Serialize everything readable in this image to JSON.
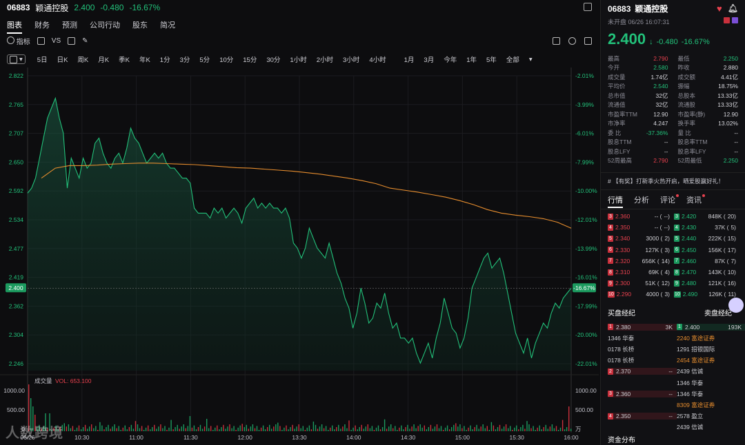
{
  "header": {
    "code": "06883",
    "name": "颖通控股",
    "price": "2.400",
    "change": "-0.480",
    "change_pct": "-16.67%"
  },
  "nav_tabs": [
    "图表",
    "财务",
    "预测",
    "公司行动",
    "股东",
    "简况"
  ],
  "toolbar": {
    "indicator": "指标",
    "vs": "VS"
  },
  "periods": [
    "5日",
    "日K",
    "周K",
    "月K",
    "季K",
    "年K",
    "1分",
    "3分",
    "5分",
    "10分",
    "15分",
    "30分",
    "1小时",
    "2小时",
    "3小时",
    "4小时"
  ],
  "periods2": [
    "1月",
    "3月",
    "今年",
    "1年",
    "5年",
    "全部"
  ],
  "chart_data": {
    "type": "line",
    "price_ticks": [
      "2.822",
      "2.765",
      "2.707",
      "2.650",
      "2.592",
      "2.534",
      "2.477",
      "2.419",
      "2.362",
      "2.304",
      "2.246"
    ],
    "pct_ticks": [
      "-2.01%",
      "-3.99%",
      "-6.01%",
      "-7.99%",
      "-10.00%",
      "-12.01%",
      "-13.99%",
      "-16.01%",
      "-17.99%",
      "-20.00%",
      "-22.01%"
    ],
    "current_price_label": "2.400",
    "current_pct_label": "-16.67%",
    "time_ticks": [
      "06/26",
      "10:30",
      "11:00",
      "11:30",
      "12:00",
      "13:30",
      "14:00",
      "14:30",
      "15:00",
      "15:30",
      "16:00"
    ],
    "ylim": [
      2.246,
      2.822
    ],
    "series": [
      {
        "values": [
          2.59,
          2.6,
          2.62,
          2.66,
          2.7,
          2.74,
          2.76,
          2.78,
          2.74,
          2.71,
          2.6,
          2.66,
          2.64,
          2.62,
          2.66,
          2.64,
          2.65,
          2.69,
          2.7,
          2.67,
          2.65,
          2.64,
          2.66,
          2.67,
          2.65,
          2.68,
          2.72,
          2.7,
          2.69,
          2.67,
          2.65,
          2.66,
          2.67,
          2.66,
          2.67,
          2.65,
          2.64,
          2.64,
          2.63,
          2.62,
          2.62,
          2.61,
          2.56,
          2.55,
          2.55,
          2.55,
          2.54,
          2.56,
          2.55,
          2.56,
          2.54,
          2.55,
          2.56,
          2.55,
          2.53,
          2.56,
          2.57,
          2.58,
          2.56,
          2.57,
          2.56,
          2.57,
          2.56,
          2.56,
          2.55,
          2.56,
          2.54,
          2.49,
          2.48,
          2.46,
          2.48,
          2.52,
          2.5,
          2.48,
          2.47,
          2.46,
          2.49,
          2.46,
          2.43,
          2.41,
          2.38,
          2.36,
          2.32,
          2.35,
          2.4,
          2.37,
          2.33,
          2.34,
          2.37,
          2.36,
          2.39,
          2.35,
          2.32,
          2.33,
          2.3,
          2.3,
          2.29,
          2.3,
          2.27,
          2.25,
          2.27,
          2.29,
          2.26,
          2.3,
          2.33,
          2.38,
          2.35,
          2.32,
          2.31,
          2.28,
          2.3,
          2.34,
          2.4,
          2.42,
          2.44,
          2.46,
          2.47,
          2.44,
          2.45,
          2.46,
          2.43,
          2.39,
          2.35,
          2.31,
          2.29,
          2.27,
          2.3,
          2.26,
          2.29,
          2.31,
          2.33,
          2.32,
          2.35,
          2.37,
          2.36,
          2.38,
          2.39,
          2.4
        ]
      },
      {
        "values": [
          2.62,
          2.64,
          2.645,
          2.645,
          2.646,
          2.648,
          2.649,
          2.65,
          2.65,
          2.649,
          2.648,
          2.647,
          2.645,
          2.643,
          2.641,
          2.64,
          2.638,
          2.636,
          2.634,
          2.631,
          2.628,
          2.624,
          2.62,
          2.615,
          2.609,
          2.6,
          2.596,
          2.592,
          2.587,
          2.582,
          2.575,
          2.567,
          2.557,
          2.55,
          2.546,
          2.543,
          2.539,
          2.532,
          2.52
        ]
      }
    ],
    "volume": {
      "title": "成交量",
      "label": "VOL: 653.100",
      "ticks_left": [
        "1000.00",
        "500.00",
        "0"
      ],
      "ticks_right": [
        "1000.00",
        "500.00",
        "万"
      ]
    }
  },
  "watermark": "人数跨境",
  "quote": {
    "title_code": "06883",
    "title_name": "颖通控股",
    "status": "未开盘 06/26 16:07:31",
    "price": "2.400",
    "change": "-0.480",
    "change_pct": "-16.67%",
    "stats": [
      [
        "最高",
        "2.790",
        "最低",
        "2.250"
      ],
      [
        "今开",
        "2.580",
        "昨收",
        "2.880"
      ],
      [
        "成交量",
        "1.74亿",
        "成交额",
        "4.41亿"
      ],
      [
        "平均价",
        "2.540",
        "振幅",
        "18.75%"
      ],
      [
        "总市值",
        "32亿",
        "总股本",
        "13.33亿"
      ],
      [
        "流通值",
        "32亿",
        "流通股",
        "13.33亿"
      ],
      [
        "市盈率TTM",
        "12.90",
        "市盈率(静)",
        "12.90"
      ],
      [
        "市净率",
        "4.247",
        "换手率",
        "13.02%"
      ],
      [
        "委 比",
        "-37.36%",
        "量 比",
        "--"
      ],
      [
        "股息TTM",
        "--",
        "股息率TTM",
        "--"
      ],
      [
        "股息LFY",
        "--",
        "股息率LFY",
        "--"
      ],
      [
        "52周最高",
        "2.790",
        "52周最低",
        "2.250"
      ]
    ],
    "news": "【有奖】打新季火热开启，晒爱股赢好礼！"
  },
  "right_tabs": [
    "行情",
    "分析",
    "评论",
    "资讯"
  ],
  "order_book": {
    "bids": [
      [
        "3",
        "2.360",
        "-- (",
        "--)"
      ],
      [
        "4",
        "2.350",
        "-- (",
        "--)"
      ],
      [
        "5",
        "2.340",
        "3000 (",
        "2)"
      ],
      [
        "6",
        "2.330",
        "127K (",
        "3)"
      ],
      [
        "7",
        "2.320",
        "656K (",
        "14)"
      ],
      [
        "8",
        "2.310",
        "69K (",
        "4)"
      ],
      [
        "9",
        "2.300",
        "51K (",
        "12)"
      ],
      [
        "10",
        "2.290",
        "4000 (",
        "3)"
      ]
    ],
    "asks": [
      [
        "3",
        "2.420",
        "848K (",
        "20)"
      ],
      [
        "4",
        "2.430",
        "37K (",
        "5)"
      ],
      [
        "5",
        "2.440",
        "222K (",
        "15)"
      ],
      [
        "6",
        "2.450",
        "156K (",
        "17)"
      ],
      [
        "7",
        "2.460",
        "87K (",
        "7)"
      ],
      [
        "8",
        "2.470",
        "143K (",
        "10)"
      ],
      [
        "9",
        "2.480",
        "121K (",
        "16)"
      ],
      [
        "10",
        "2.490",
        "126K (",
        "11)"
      ]
    ]
  },
  "brokers": {
    "buy_title": "买盘经纪",
    "sell_title": "卖盘经纪",
    "rows": [
      [
        {
          "lvl": "1",
          "text": "2.380",
          "right": "3K",
          "kind": "buy-level"
        },
        {
          "lvl": "1",
          "text": "2.400",
          "right": "193K",
          "kind": "sell-level"
        }
      ],
      [
        {
          "text": "1346 华泰",
          "kind": "plain"
        },
        {
          "text": "2240 富途证券",
          "kind": "orange"
        }
      ],
      [
        {
          "text": "0178 长桥",
          "kind": "plain"
        },
        {
          "text": "1291 招银国际",
          "kind": "plain"
        }
      ],
      [
        {
          "text": "0178 长桥",
          "kind": "plain"
        },
        {
          "text": "2454 富途证券",
          "kind": "orange"
        }
      ],
      [
        {
          "lvl": "2",
          "text": "2.370",
          "right": "--",
          "kind": "buy-level"
        },
        {
          "text": "2439 信诚",
          "kind": "plain"
        }
      ],
      [
        {
          "text": "",
          "kind": "plain"
        },
        {
          "text": "1346 华泰",
          "kind": "plain"
        }
      ],
      [
        {
          "lvl": "3",
          "text": "2.360",
          "right": "--",
          "kind": "buy-level"
        },
        {
          "text": "1346 华泰",
          "kind": "plain"
        }
      ],
      [
        {
          "text": "",
          "kind": "plain"
        },
        {
          "text": "8309 富途证券",
          "kind": "orange"
        }
      ],
      [
        {
          "lvl": "4",
          "text": "2.350",
          "right": "--",
          "kind": "buy-level"
        },
        {
          "text": "2578 盈立",
          "kind": "plain"
        }
      ],
      [
        {
          "text": "",
          "kind": "plain"
        },
        {
          "text": "2439 信诚",
          "kind": "plain"
        }
      ]
    ]
  },
  "fund_dist": "资金分布"
}
